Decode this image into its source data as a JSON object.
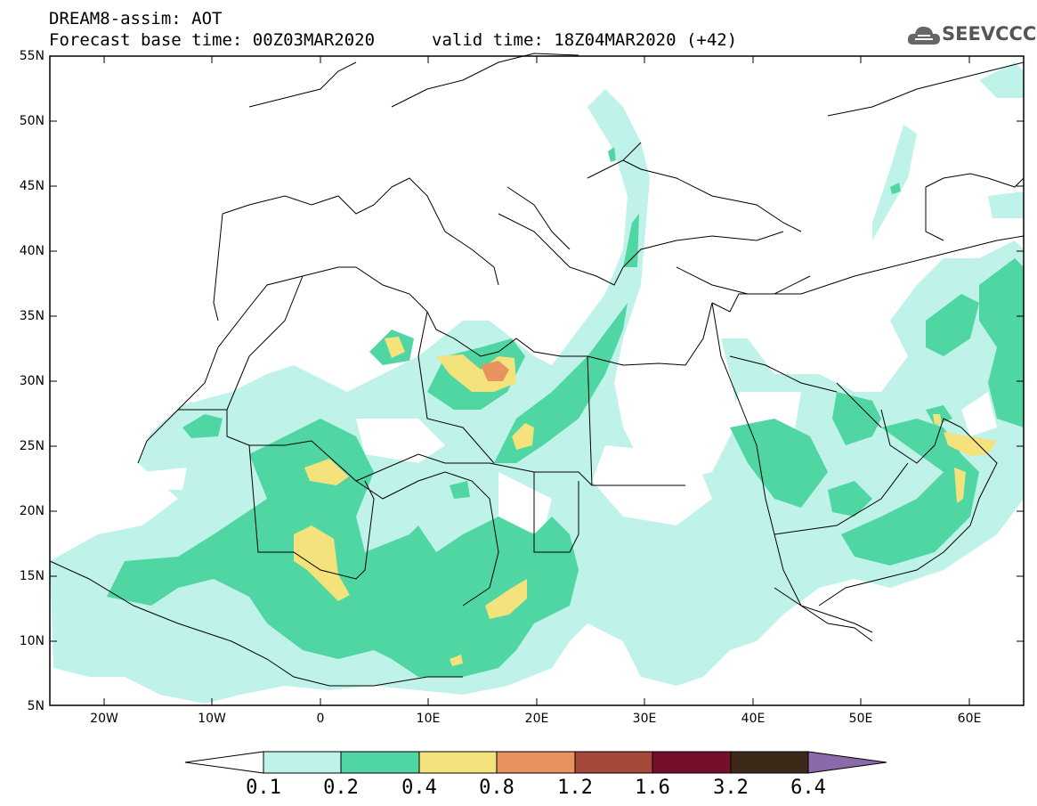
{
  "header": {
    "line1": "DREAM8-assim: AOT",
    "line2": "Forecast base time: 00Z03MAR2020",
    "valid": "valid time: 18Z04MAR2020 (+42)"
  },
  "logo": {
    "text": "SEEVCCC",
    "icon": "cloud-icon"
  },
  "map": {
    "region": "North Africa, Mediterranean and Middle East",
    "lon_range": [
      -25,
      65
    ],
    "lat_range": [
      5,
      55
    ],
    "lat_labels": [
      "55N",
      "50N",
      "45N",
      "40N",
      "35N",
      "30N",
      "25N",
      "20N",
      "15N",
      "10N",
      "5N"
    ],
    "lon_labels": [
      "20W",
      "10W",
      "0",
      "10E",
      "20E",
      "30E",
      "40E",
      "50E",
      "60E"
    ]
  },
  "colorbar": {
    "labels": [
      "0.1",
      "0.2",
      "0.4",
      "0.8",
      "1.2",
      "1.6",
      "3.2",
      "6.4"
    ],
    "colors": [
      "#ffffff",
      "#bff2e8",
      "#4fd6a3",
      "#f4e27c",
      "#e8925e",
      "#a4483a",
      "#74102a",
      "#3d2917",
      "#8a6aa8"
    ]
  }
}
